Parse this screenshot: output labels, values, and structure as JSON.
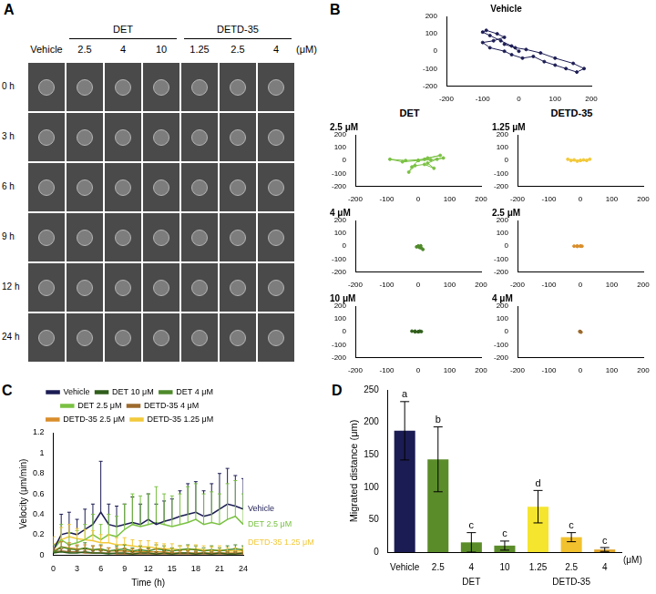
{
  "image_grid": {
    "panel": "A",
    "columns": [
      {
        "label": "Vehicle"
      },
      {
        "group": "DET",
        "labels": [
          "2.5",
          "4",
          "10"
        ]
      },
      {
        "group": "DETD-35",
        "labels": [
          "1.25",
          "2.5",
          "4"
        ]
      }
    ],
    "unit": "(μM)",
    "rows": [
      "0 h",
      "3 h",
      "6 h",
      "9 h",
      "12 h",
      "24 h"
    ]
  },
  "chart_data": [
    {
      "panel": "B",
      "type": "scatter",
      "title": "Vehicle",
      "color": "#1c1c54",
      "marker": "circle",
      "line_style": "solid",
      "grid": false,
      "x": [
        0,
        -20,
        -50,
        -80,
        -100,
        -90,
        -60,
        -40,
        -70,
        -100,
        -80,
        -40,
        -20,
        10,
        40,
        70,
        100,
        130,
        160,
        180,
        150,
        100,
        60,
        20,
        -10,
        -40
      ],
      "values": [
        0,
        30,
        60,
        90,
        110,
        120,
        100,
        80,
        60,
        50,
        20,
        0,
        -20,
        -40,
        -30,
        -60,
        -80,
        -100,
        -120,
        -100,
        -70,
        -40,
        -10,
        10,
        20,
        40
      ],
      "xlim": [
        -200,
        200
      ],
      "xticks": [
        -200,
        -100,
        0,
        100,
        200
      ],
      "ylim": [
        -200,
        200
      ],
      "yticks": [
        -200,
        -100,
        0,
        100,
        200
      ]
    },
    {
      "panel": "B",
      "group": "DET",
      "type": "scatter",
      "title": "2.5 μM",
      "color": "#7ac143",
      "marker": "circle",
      "line_style": "solid",
      "grid": false,
      "x": [
        0,
        30,
        70,
        20,
        -40,
        -90,
        -50,
        0,
        -20,
        -30,
        -10,
        20,
        50,
        30,
        60,
        80,
        40,
        0
      ],
      "values": [
        0,
        20,
        40,
        10,
        0,
        10,
        -10,
        0,
        -50,
        -90,
        -40,
        -30,
        -60,
        -20,
        10,
        20,
        5,
        0
      ],
      "xlim": [
        -200,
        200
      ],
      "xticks": [
        -200,
        -100,
        0,
        100,
        200
      ],
      "ylim": [
        -200,
        200
      ],
      "yticks": [
        -200,
        -100,
        0,
        100,
        200
      ]
    },
    {
      "panel": "B",
      "group": "DET",
      "type": "scatter",
      "title": "4 μM",
      "color": "#4f8a2b",
      "marker": "circle",
      "line_style": "solid",
      "grid": false,
      "x": [
        0,
        5,
        10,
        15,
        5,
        -5,
        0,
        8,
        3
      ],
      "values": [
        0,
        -5,
        -15,
        -25,
        -10,
        -5,
        0,
        3,
        -8
      ],
      "xlim": [
        -200,
        200
      ],
      "xticks": [
        -200,
        -100,
        0,
        100,
        200
      ],
      "ylim": [
        -200,
        200
      ],
      "yticks": [
        -200,
        -100,
        0,
        100,
        200
      ]
    },
    {
      "panel": "B",
      "group": "DET",
      "type": "scatter",
      "title": "10 μM",
      "color": "#2f5e1a",
      "marker": "circle",
      "line_style": "solid",
      "grid": false,
      "x": [
        0,
        -10,
        -20,
        -10,
        5,
        10,
        0
      ],
      "values": [
        0,
        5,
        5,
        0,
        5,
        2,
        0
      ],
      "xlim": [
        -200,
        200
      ],
      "xticks": [
        -200,
        -100,
        0,
        100,
        200
      ],
      "ylim": [
        -200,
        200
      ],
      "yticks": [
        -200,
        -100,
        0,
        100,
        200
      ]
    },
    {
      "panel": "B",
      "group": "DETD-35",
      "type": "scatter",
      "title": "1.25 μM",
      "color": "#f2c93a",
      "marker": "circle",
      "line_style": "solid",
      "grid": false,
      "x": [
        0,
        -20,
        -40,
        -30,
        -10,
        10,
        30,
        20,
        0
      ],
      "values": [
        0,
        5,
        10,
        0,
        -5,
        5,
        10,
        0,
        0
      ],
      "xlim": [
        -200,
        200
      ],
      "xticks": [
        -200,
        -100,
        0,
        100,
        200
      ],
      "ylim": [
        -200,
        200
      ],
      "yticks": [
        -200,
        -100,
        0,
        100,
        200
      ]
    },
    {
      "panel": "B",
      "group": "DETD-35",
      "type": "scatter",
      "title": "2.5 μM",
      "color": "#d98e2b",
      "marker": "circle",
      "line_style": "solid",
      "grid": false,
      "x": [
        0,
        -10,
        -20,
        -10,
        5,
        0
      ],
      "values": [
        0,
        -2,
        0,
        2,
        0,
        0
      ],
      "xlim": [
        -200,
        200
      ],
      "xticks": [
        -200,
        -100,
        0,
        100,
        200
      ],
      "ylim": [
        -200,
        200
      ],
      "yticks": [
        -200,
        -100,
        0,
        100,
        200
      ]
    },
    {
      "panel": "B",
      "group": "DETD-35",
      "type": "scatter",
      "title": "4 μM",
      "color": "#9c6b2e",
      "marker": "circle",
      "line_style": "solid",
      "grid": false,
      "x": [
        0,
        2,
        -2,
        0
      ],
      "values": [
        0,
        -3,
        3,
        0
      ],
      "xlim": [
        -200,
        200
      ],
      "xticks": [
        -200,
        -100,
        0,
        100,
        200
      ],
      "ylim": [
        -200,
        200
      ],
      "yticks": [
        -200,
        -100,
        0,
        100,
        200
      ]
    },
    {
      "panel": "C",
      "type": "line",
      "line_style": "solid",
      "grid": false,
      "legend": "top",
      "x_label": "Time (h)",
      "y_label": "Velocity (μm/min)",
      "x": [
        0,
        1,
        2,
        3,
        4,
        5,
        6,
        7,
        8,
        9,
        10,
        11,
        12,
        13,
        14,
        15,
        16,
        17,
        18,
        19,
        20,
        21,
        22,
        23,
        24
      ],
      "xlim": [
        0,
        24
      ],
      "xticks": [
        0,
        3,
        6,
        9,
        12,
        15,
        18,
        21,
        24
      ],
      "ylim": [
        0,
        1.2
      ],
      "yticks": [
        0,
        0.2,
        0.4,
        0.6,
        0.8,
        1,
        1.2
      ],
      "series": [
        {
          "name": "Vehicle",
          "color": "#1c1c54",
          "values": [
            0.05,
            0.2,
            0.22,
            0.2,
            0.25,
            0.3,
            0.42,
            0.3,
            0.28,
            0.3,
            0.32,
            0.3,
            0.35,
            0.3,
            0.33,
            0.35,
            0.38,
            0.4,
            0.42,
            0.38,
            0.4,
            0.45,
            0.5,
            0.48,
            0.45
          ],
          "errors": [
            0.05,
            0.2,
            0.2,
            0.15,
            0.2,
            0.2,
            0.5,
            0.2,
            0.2,
            0.2,
            0.25,
            0.2,
            0.25,
            0.2,
            0.2,
            0.2,
            0.25,
            0.3,
            0.3,
            0.25,
            0.3,
            0.35,
            0.35,
            0.3,
            0.3
          ]
        },
        {
          "name": "DET 10 μM",
          "color": "#2f5e1a",
          "values": [
            0.02,
            0.03,
            0.02,
            0.02,
            0.03,
            0.02,
            0.02,
            0.01,
            0.02,
            0.02,
            0.01,
            0.02,
            0.02,
            0.01,
            0.02,
            0.01,
            0.02,
            0.02,
            0.01,
            0.02,
            0.01,
            0.02,
            0.01,
            0.01,
            0.02
          ],
          "errors": [
            0.02,
            0.03,
            0.02,
            0.02,
            0.03,
            0.02,
            0.02,
            0.02,
            0.02,
            0.02,
            0.02,
            0.02,
            0.02,
            0.02,
            0.02,
            0.02,
            0.02,
            0.02,
            0.02,
            0.02,
            0.02,
            0.02,
            0.02,
            0.02,
            0.02
          ]
        },
        {
          "name": "DET 4 μM",
          "color": "#4f8a2b",
          "values": [
            0.02,
            0.08,
            0.06,
            0.05,
            0.07,
            0.05,
            0.06,
            0.04,
            0.05,
            0.06,
            0.04,
            0.05,
            0.04,
            0.06,
            0.05,
            0.04,
            0.05,
            0.06,
            0.05,
            0.04,
            0.05,
            0.04,
            0.05,
            0.06,
            0.05
          ],
          "errors": [
            0.02,
            0.05,
            0.04,
            0.04,
            0.05,
            0.04,
            0.04,
            0.03,
            0.04,
            0.04,
            0.03,
            0.04,
            0.03,
            0.04,
            0.04,
            0.03,
            0.04,
            0.04,
            0.04,
            0.03,
            0.04,
            0.03,
            0.04,
            0.04,
            0.04
          ]
        },
        {
          "name": "DET 2.5 μM",
          "color": "#7ac143",
          "values": [
            0.05,
            0.15,
            0.1,
            0.12,
            0.15,
            0.2,
            0.15,
            0.2,
            0.18,
            0.25,
            0.3,
            0.28,
            0.3,
            0.32,
            0.3,
            0.28,
            0.3,
            0.32,
            0.35,
            0.3,
            0.32,
            0.3,
            0.35,
            0.38,
            0.3
          ],
          "errors": [
            0.05,
            0.15,
            0.12,
            0.12,
            0.15,
            0.2,
            0.15,
            0.2,
            0.2,
            0.25,
            0.3,
            0.3,
            0.3,
            0.35,
            0.3,
            0.3,
            0.3,
            0.35,
            0.35,
            0.3,
            0.3,
            0.3,
            0.35,
            0.35,
            0.3
          ]
        },
        {
          "name": "DETD-35 4 μM",
          "color": "#9c6b2e",
          "values": [
            0.03,
            0.04,
            0.03,
            0.03,
            0.02,
            0.02,
            0.02,
            0.02,
            0.01,
            0.01,
            0.01,
            0.01,
            0.01,
            0.01,
            0.01,
            0.01,
            0.01,
            0.01,
            0.01,
            0.01,
            0.01,
            0.01,
            0.01,
            0.01,
            0.01
          ],
          "errors": [
            0.02,
            0.02,
            0.02,
            0.02,
            0.02,
            0.02,
            0.02,
            0.02,
            0.02,
            0.02,
            0.01,
            0.01,
            0.01,
            0.01,
            0.01,
            0.01,
            0.01,
            0.01,
            0.01,
            0.01,
            0.01,
            0.01,
            0.01,
            0.01,
            0.01
          ]
        },
        {
          "name": "DETD-35 2.5 μM",
          "color": "#d98e2b",
          "values": [
            0.04,
            0.08,
            0.07,
            0.06,
            0.06,
            0.05,
            0.05,
            0.04,
            0.04,
            0.04,
            0.03,
            0.03,
            0.03,
            0.03,
            0.03,
            0.02,
            0.02,
            0.02,
            0.02,
            0.02,
            0.02,
            0.02,
            0.02,
            0.02,
            0.02
          ],
          "errors": [
            0.03,
            0.05,
            0.05,
            0.04,
            0.04,
            0.04,
            0.04,
            0.03,
            0.03,
            0.03,
            0.03,
            0.03,
            0.03,
            0.03,
            0.03,
            0.02,
            0.02,
            0.02,
            0.02,
            0.02,
            0.02,
            0.02,
            0.02,
            0.02,
            0.02
          ]
        },
        {
          "name": "DETD-35 1.25 μM",
          "color": "#f2c93a",
          "values": [
            0.1,
            0.15,
            0.18,
            0.16,
            0.15,
            0.14,
            0.12,
            0.12,
            0.1,
            0.1,
            0.09,
            0.08,
            0.08,
            0.07,
            0.06,
            0.06,
            0.05,
            0.05,
            0.06,
            0.05,
            0.04,
            0.05,
            0.04,
            0.04,
            0.04
          ],
          "errors": [
            0.08,
            0.12,
            0.12,
            0.1,
            0.1,
            0.1,
            0.08,
            0.08,
            0.07,
            0.07,
            0.06,
            0.06,
            0.06,
            0.05,
            0.05,
            0.05,
            0.04,
            0.04,
            0.04,
            0.04,
            0.04,
            0.04,
            0.03,
            0.03,
            0.03
          ]
        }
      ],
      "annotations": [
        {
          "text": "Vehicle",
          "x": 24,
          "y": 0.45,
          "series": "Vehicle"
        },
        {
          "text": "DET 2.5 μM",
          "x": 24,
          "y": 0.3,
          "series": "DET 2.5 μM"
        },
        {
          "text": "DETD-35 1.25 μM",
          "x": 24,
          "y": 0.12,
          "series": "DETD-35 1.25 μM"
        }
      ]
    },
    {
      "panel": "D",
      "type": "bar",
      "grid": false,
      "y_label": "Migrated distance (μm)",
      "categories": [
        "Vehicle",
        "2.5",
        "4",
        "10",
        "1.25",
        "2.5",
        "4"
      ],
      "x_groups": [
        {
          "label": "DET",
          "from": 1,
          "to": 3
        },
        {
          "label": "DETD-35",
          "from": 4,
          "to": 6
        }
      ],
      "unit": "(μM)",
      "values": [
        187,
        143,
        15,
        10,
        70,
        23,
        4
      ],
      "errors": [
        45,
        50,
        15,
        7,
        25,
        7,
        3
      ],
      "letters": [
        "a",
        "b",
        "c",
        "c",
        "d",
        "c",
        "c"
      ],
      "colors": [
        "#1c1c54",
        "#5b8c2a",
        "#5b8c2a",
        "#5b8c2a",
        "#f5e52e",
        "#f2c12e",
        "#e0a52a"
      ],
      "ylim": [
        0,
        250
      ],
      "yticks": [
        0,
        50,
        100,
        150,
        200,
        250
      ]
    }
  ]
}
